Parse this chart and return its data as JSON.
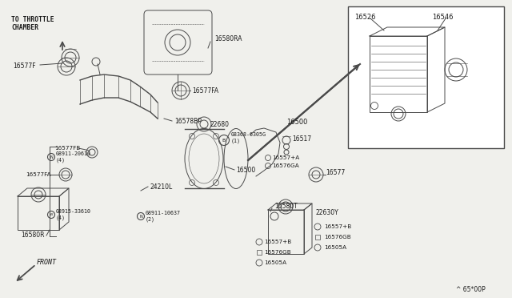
{
  "bg_color": "#f0f0ec",
  "lc": "#4a4a4a",
  "tc": "#1a1a1a",
  "fig_width": 6.4,
  "fig_height": 3.72,
  "footer": "^ 65*00P",
  "labels": {
    "to_throttle": "TO THROTTLE\nCHAMBER",
    "16577F": "16577F",
    "16580RA": "16580RA",
    "16577FA_top": "16577FA",
    "16578BP": "16578BP",
    "22680": "22680",
    "16577FB": "16577FB",
    "N1": "N08911-20610\n(4)",
    "16577FA_mid": "16577FA",
    "W1": "W08915-33610\n(4)",
    "16580R": "16580R",
    "N2": "N08911-10637\n(2)",
    "24210L": "24210L",
    "B1": "B08368-6305G\n(1)",
    "16500c": "16500",
    "16557A": "16557+A",
    "16576GA": "16576GA",
    "16517": "16517",
    "16577r": "16577",
    "16500": "16500",
    "16580T": "16580T",
    "22630Y": "22630Y",
    "16557Bl": "16557+B",
    "16576GBl": "16576GB",
    "16505Al": "16505A",
    "16557Br": "16557+B",
    "16576GBr": "16576GB",
    "16505Ar": "16505A",
    "front": "FRONT",
    "16526": "16526",
    "16546": "16546"
  }
}
